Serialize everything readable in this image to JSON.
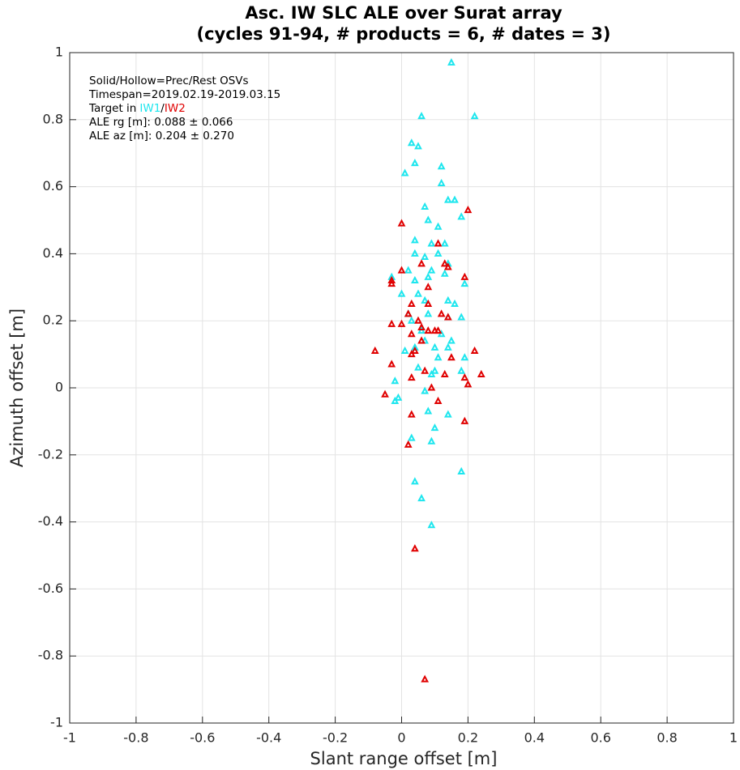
{
  "chart_data": {
    "type": "scatter",
    "title": [
      "Asc. IW SLC ALE over Surat array",
      "(cycles 91-94, # products = 6, # dates = 3)"
    ],
    "xlabel": "Slant range offset [m]",
    "ylabel": "Azimuth offset [m]",
    "annotations": {
      "lines_before": [
        "Solid/Hollow=Prec/Rest OSVs",
        "Timespan=2019.02.19-2019.03.15"
      ],
      "target_prefix": "Target in",
      "target_separator": "/",
      "lines_after": [
        "ALE rg [m]: 0.088 ± 0.066",
        "ALE az [m]: 0.204 ± 0.270"
      ]
    },
    "xlim": [
      -1,
      1
    ],
    "ylim": [
      -1,
      1
    ],
    "xticks": [
      -1,
      -0.8,
      -0.6,
      -0.4,
      -0.2,
      0,
      0.2,
      0.4,
      0.6,
      0.8,
      1
    ],
    "yticks": [
      -1,
      -0.8,
      -0.6,
      -0.4,
      -0.2,
      0,
      0.2,
      0.4,
      0.6,
      0.8,
      1
    ],
    "grid": true,
    "series": [
      {
        "name": "IW1",
        "color": "#1ee6ee",
        "x": [
          0.15,
          0.22,
          0.06,
          0.03,
          0.05,
          0.04,
          0.12,
          0.01,
          0.12,
          0.07,
          0.14,
          0.16,
          0.18,
          0.08,
          0.11,
          0.04,
          0.09,
          0.13,
          0.07,
          0.04,
          0.11,
          0.02,
          0.09,
          0.14,
          -0.03,
          0.04,
          0.08,
          0.13,
          0.19,
          0.05,
          0.0,
          0.07,
          0.14,
          0.16,
          0.02,
          0.08,
          0.14,
          0.18,
          0.03,
          0.06,
          0.12,
          0.15,
          0.07,
          0.04,
          0.1,
          0.14,
          0.01,
          0.19,
          0.11,
          0.05,
          0.1,
          0.18,
          0.09,
          -0.02,
          0.07,
          -0.01,
          -0.02,
          0.08,
          0.14,
          0.1,
          0.03,
          0.09,
          0.18,
          0.04,
          0.06,
          0.09
        ],
        "values": [
          0.97,
          0.81,
          0.81,
          0.73,
          0.72,
          0.67,
          0.66,
          0.64,
          0.61,
          0.54,
          0.56,
          0.56,
          0.51,
          0.5,
          0.48,
          0.44,
          0.43,
          0.43,
          0.39,
          0.4,
          0.4,
          0.35,
          0.35,
          0.37,
          0.33,
          0.32,
          0.33,
          0.34,
          0.31,
          0.28,
          0.28,
          0.26,
          0.26,
          0.25,
          0.22,
          0.22,
          0.21,
          0.21,
          0.2,
          0.17,
          0.16,
          0.14,
          0.14,
          0.12,
          0.12,
          0.12,
          0.11,
          0.09,
          0.09,
          0.06,
          0.05,
          0.05,
          0.04,
          0.02,
          -0.01,
          -0.03,
          -0.04,
          -0.07,
          -0.08,
          -0.12,
          -0.15,
          -0.16,
          -0.25,
          -0.28,
          -0.33,
          -0.41
        ]
      },
      {
        "name": "IW2",
        "color": "#e00000",
        "x": [
          0.2,
          0.0,
          0.11,
          0.0,
          0.06,
          0.13,
          0.14,
          -0.03,
          0.19,
          -0.03,
          0.08,
          0.12,
          0.02,
          0.03,
          0.08,
          0.05,
          0.0,
          -0.03,
          0.14,
          0.06,
          0.08,
          0.1,
          0.11,
          0.03,
          0.06,
          -0.08,
          0.03,
          0.04,
          0.15,
          0.22,
          -0.03,
          0.03,
          0.07,
          0.13,
          0.24,
          0.19,
          0.2,
          0.09,
          -0.05,
          0.11,
          0.03,
          0.19,
          0.02,
          0.04,
          0.07
        ],
        "values": [
          0.53,
          0.49,
          0.43,
          0.35,
          0.37,
          0.37,
          0.36,
          0.32,
          0.33,
          0.31,
          0.3,
          0.22,
          0.22,
          0.25,
          0.25,
          0.2,
          0.19,
          0.19,
          0.21,
          0.18,
          0.17,
          0.17,
          0.17,
          0.16,
          0.14,
          0.11,
          0.1,
          0.11,
          0.09,
          0.11,
          0.07,
          0.03,
          0.05,
          0.04,
          0.04,
          0.03,
          0.01,
          0.0,
          -0.02,
          -0.04,
          -0.08,
          -0.1,
          -0.17,
          -0.48,
          -0.87
        ]
      }
    ]
  }
}
